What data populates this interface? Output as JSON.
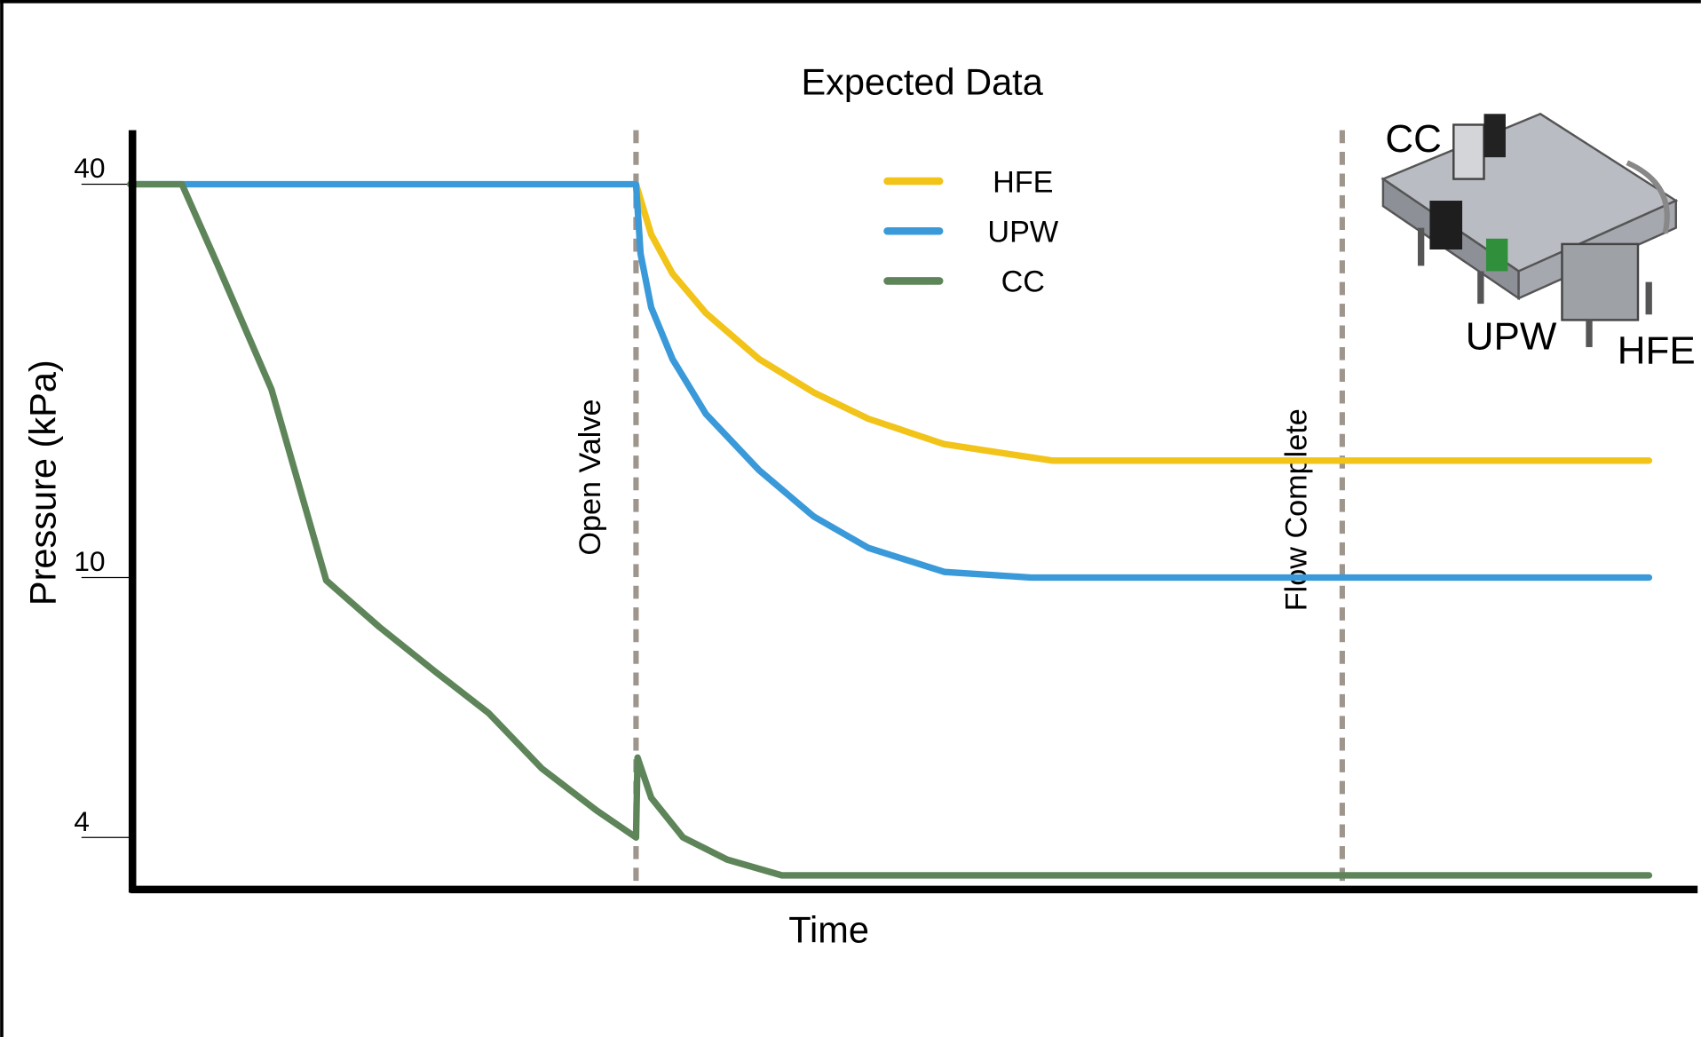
{
  "chart_data": {
    "type": "line",
    "title": "Expected Data",
    "x_label": "Time",
    "y_label": "Pressure (kPa)",
    "xlim": [
      0,
      103.2
    ],
    "ylim": [
      3.33,
      48.4
    ],
    "yscale": "log",
    "yticks": [
      4,
      10,
      40
    ],
    "legend": "upper center",
    "series": [
      {
        "name": "HFE",
        "color": "#f2c318",
        "x": [
          33.3,
          34.3,
          35.7,
          37.9,
          41.4,
          45,
          48.6,
          53.6,
          60.7,
          100
        ],
        "values": [
          40,
          33.5,
          29.2,
          25.4,
          21.6,
          19.2,
          17.5,
          16,
          15.1,
          15.1
        ]
      },
      {
        "name": "UPW",
        "color": "#3a9ad9",
        "x": [
          0,
          33.3,
          33.6,
          34.3,
          35.7,
          37.9,
          41.4,
          45,
          48.6,
          53.6,
          59.3,
          100
        ],
        "values": [
          40,
          40,
          31.3,
          25.9,
          21.6,
          17.8,
          14.6,
          12.4,
          11.1,
          10.2,
          10,
          10
        ]
      },
      {
        "name": "CC",
        "color": "#5e8559",
        "x": [
          0,
          3.4,
          5.7,
          9.3,
          12.9,
          16.4,
          20,
          23.6,
          27.1,
          30.7,
          33.3,
          33.4,
          34.3,
          36.4,
          39.3,
          42.9,
          100
        ],
        "values": [
          40,
          40,
          30.3,
          19.4,
          9.9,
          8.4,
          7.2,
          6.2,
          5.1,
          4.4,
          4.0,
          5.3,
          4.6,
          4.0,
          3.7,
          3.5,
          3.5
        ]
      }
    ],
    "annotations": [
      {
        "text": "Open Valve",
        "x": 33.3
      },
      {
        "text": "Flow Complete",
        "x": 79.8
      }
    ],
    "inset_labels": [
      {
        "text": "CC",
        "color": "#1aa64a"
      },
      {
        "text": "UPW",
        "color": "#29abe2"
      },
      {
        "text": "HFE",
        "color": "#f5c518"
      }
    ]
  }
}
